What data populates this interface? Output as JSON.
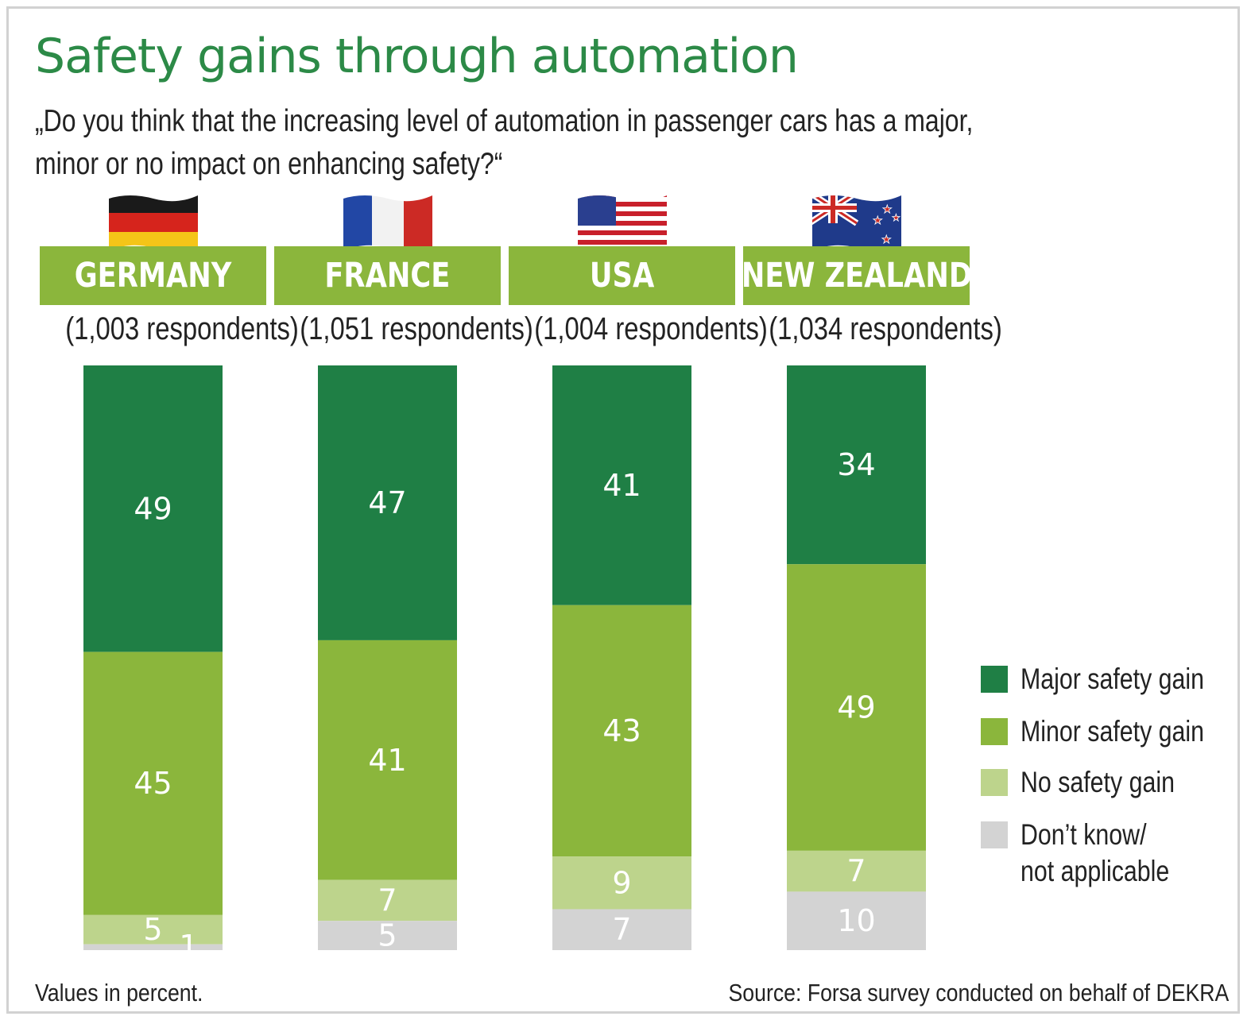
{
  "title": "Safety gains through automation",
  "subtitle_line1": "„Do you think that the increasing level of automation in passenger cars has a major,",
  "subtitle_line2": "minor or no impact on enhancing safety?“",
  "countries": [
    {
      "name": "GERMANY",
      "respondents": "(1,003 respondents)"
    },
    {
      "name": "FRANCE",
      "respondents": "(1,051 respondents)"
    },
    {
      "name": "USA",
      "respondents": "(1,004 respondents)"
    },
    {
      "name": "NEW ZEALAND",
      "respondents": "(1,034 respondents)"
    }
  ],
  "legend": [
    {
      "label": "Major safety gain",
      "color": "#1f7f45"
    },
    {
      "label": "Minor safety gain",
      "color": "#8bb63c"
    },
    {
      "label": "No safety gain",
      "color": "#bdd48c"
    },
    {
      "label": "Don’t know/",
      "label2": "not applicable",
      "color": "#d3d3d3"
    }
  ],
  "footnote": "Values in percent.",
  "source": "Source: Forsa survey conducted on behalf of DEKRA",
  "chart_data": {
    "type": "bar",
    "stacked": true,
    "orientation": "vertical",
    "categories": [
      "GERMANY",
      "FRANCE",
      "USA",
      "NEW ZEALAND"
    ],
    "series": [
      {
        "name": "Major safety gain",
        "values": [
          49,
          47,
          41,
          34
        ],
        "color": "#1f7f45"
      },
      {
        "name": "Minor safety gain",
        "values": [
          45,
          41,
          43,
          49
        ],
        "color": "#8bb63c"
      },
      {
        "name": "No safety gain",
        "values": [
          5,
          7,
          9,
          7
        ],
        "color": "#bdd48c"
      },
      {
        "name": "Don’t know/ not applicable",
        "values": [
          1,
          5,
          7,
          10
        ],
        "color": "#d3d3d3"
      }
    ],
    "title": "Safety gains through automation",
    "ylabel": "Values in percent.",
    "ylim": [
      0,
      100
    ],
    "legend_position": "right"
  }
}
